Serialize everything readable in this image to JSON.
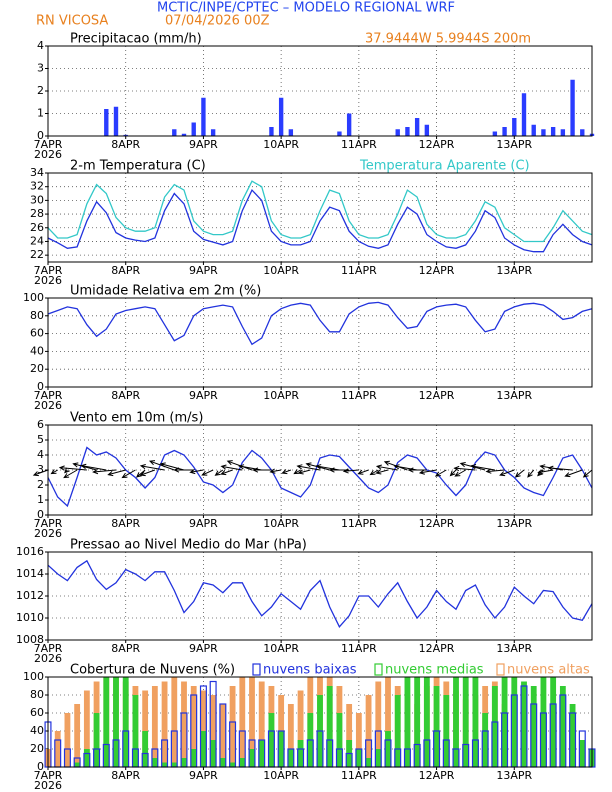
{
  "header": {
    "title": "MCTIC/INPE/CPTEC – MODELO REGIONAL WRF",
    "location": "RN VICOSA",
    "run": "07/04/2026 00Z",
    "coords": "37.9444W 5.9944S 200m"
  },
  "chart_data": [
    {
      "type": "bar",
      "title": "Precipitacao (mm/h)",
      "color": "#2a3cff",
      "grid": true,
      "x": [
        0,
        3,
        6,
        9,
        12,
        15,
        18,
        21,
        24,
        27,
        30,
        33,
        36,
        39,
        42,
        45,
        48,
        51,
        54,
        57,
        60,
        63,
        66,
        69,
        72,
        75,
        78,
        81,
        84,
        87,
        90,
        93,
        96,
        99,
        102,
        105,
        108,
        111,
        114,
        117,
        120,
        123,
        126,
        129,
        132,
        135,
        138,
        141,
        144,
        147,
        150,
        153,
        156,
        159,
        162,
        165,
        168
      ],
      "values": [
        0,
        0,
        0,
        0,
        0,
        0,
        1.2,
        1.3,
        0.05,
        0,
        0,
        0,
        0,
        0.3,
        0.1,
        0.6,
        1.7,
        0.3,
        0,
        0,
        0,
        0,
        0,
        0.4,
        1.7,
        0.3,
        0,
        0,
        0,
        0,
        0.2,
        1.0,
        0,
        0,
        0,
        0,
        0.3,
        0.4,
        0.8,
        0.5,
        0,
        0,
        0,
        0,
        0,
        0,
        0.2,
        0.4,
        0.8,
        1.9,
        0.5,
        0.3,
        0.4,
        0.3,
        2.5,
        0.3,
        0.1
      ],
      "xlim": [
        0,
        168
      ],
      "xticks": [
        {
          "value": 0,
          "label": "7APR"
        },
        {
          "value": 24,
          "label": "8APR"
        },
        {
          "value": 48,
          "label": "9APR"
        },
        {
          "value": 72,
          "label": "10APR"
        },
        {
          "value": 96,
          "label": "11APR"
        },
        {
          "value": 120,
          "label": "12APR"
        },
        {
          "value": 144,
          "label": "13APR"
        }
      ],
      "year_label": "2026",
      "ylim": [
        0,
        4
      ],
      "yticks": [
        0,
        1,
        2,
        3,
        4
      ]
    },
    {
      "type": "line",
      "title": "2-m Temperatura (C)",
      "grid": true,
      "x": [
        0,
        3,
        6,
        9,
        12,
        15,
        18,
        21,
        24,
        27,
        30,
        33,
        36,
        39,
        42,
        45,
        48,
        51,
        54,
        57,
        60,
        63,
        66,
        69,
        72,
        75,
        78,
        81,
        84,
        87,
        90,
        93,
        96,
        99,
        102,
        105,
        108,
        111,
        114,
        117,
        120,
        123,
        126,
        129,
        132,
        135,
        138,
        141,
        144,
        147,
        150,
        153,
        156,
        159,
        162,
        165,
        168
      ],
      "series": [
        {
          "color": "#2233dd",
          "values": [
            24.5,
            23.8,
            23.0,
            23.2,
            27.0,
            29.8,
            28.2,
            25.3,
            24.5,
            24.2,
            24.0,
            24.5,
            28.5,
            31.0,
            29.5,
            25.5,
            24.3,
            23.9,
            23.5,
            24.0,
            28.5,
            31.5,
            30.0,
            25.5,
            24.0,
            23.5,
            23.5,
            24.0,
            27.0,
            29.0,
            28.5,
            25.5,
            24.0,
            23.3,
            23.0,
            23.5,
            26.5,
            29.0,
            28.0,
            25.0,
            24.0,
            23.2,
            23.0,
            23.5,
            25.5,
            28.5,
            27.5,
            24.5,
            23.5,
            22.8,
            22.5,
            22.5,
            25.0,
            26.5,
            25.0,
            24.0,
            23.5
          ]
        },
        {
          "name": "Temperatura Aparente (C)",
          "color": "#33c8c8",
          "values": [
            26,
            24.5,
            24.5,
            25,
            29.5,
            32.3,
            31,
            27.5,
            26,
            25.5,
            25.5,
            26,
            30.5,
            32.3,
            31.5,
            27,
            25.5,
            25,
            25,
            25.5,
            30,
            32.8,
            32,
            27,
            25,
            24.5,
            24.5,
            25,
            28.5,
            31.5,
            31,
            27,
            25,
            24.5,
            24.5,
            25,
            28,
            31.5,
            30.5,
            26.5,
            25,
            24.5,
            24.5,
            25,
            27,
            29.8,
            29,
            26,
            25,
            24,
            24,
            24,
            26,
            28.5,
            27,
            25.5,
            25
          ]
        }
      ],
      "xlim": [
        0,
        168
      ],
      "xticks": [
        {
          "value": 0,
          "label": "7APR"
        },
        {
          "value": 24,
          "label": "8APR"
        },
        {
          "value": 48,
          "label": "9APR"
        },
        {
          "value": 72,
          "label": "10APR"
        },
        {
          "value": 96,
          "label": "11APR"
        },
        {
          "value": 120,
          "label": "12APR"
        },
        {
          "value": 144,
          "label": "13APR"
        }
      ],
      "year_label": "2026",
      "ylim": [
        21,
        34
      ],
      "yticks": [
        22,
        24,
        26,
        28,
        30,
        32,
        34
      ]
    },
    {
      "type": "line",
      "title": "Umidade Relativa em 2m (%)",
      "color": "#2233dd",
      "grid": true,
      "x": [
        0,
        3,
        6,
        9,
        12,
        15,
        18,
        21,
        24,
        27,
        30,
        33,
        36,
        39,
        42,
        45,
        48,
        51,
        54,
        57,
        60,
        63,
        66,
        69,
        72,
        75,
        78,
        81,
        84,
        87,
        90,
        93,
        96,
        99,
        102,
        105,
        108,
        111,
        114,
        117,
        120,
        123,
        126,
        129,
        132,
        135,
        138,
        141,
        144,
        147,
        150,
        153,
        156,
        159,
        162,
        165,
        168
      ],
      "values": [
        82,
        86,
        90,
        88,
        70,
        57,
        65,
        82,
        86,
        88,
        90,
        88,
        70,
        52,
        58,
        80,
        88,
        90,
        92,
        90,
        68,
        48,
        55,
        80,
        88,
        92,
        94,
        92,
        75,
        62,
        62,
        82,
        90,
        94,
        95,
        92,
        78,
        66,
        68,
        85,
        90,
        92,
        93,
        90,
        75,
        62,
        65,
        85,
        90,
        93,
        94,
        92,
        85,
        76,
        78,
        85,
        88
      ],
      "xlim": [
        0,
        168
      ],
      "xticks": [
        {
          "value": 0,
          "label": "7APR"
        },
        {
          "value": 24,
          "label": "8APR"
        },
        {
          "value": 48,
          "label": "9APR"
        },
        {
          "value": 72,
          "label": "10APR"
        },
        {
          "value": 96,
          "label": "11APR"
        },
        {
          "value": 120,
          "label": "12APR"
        },
        {
          "value": 144,
          "label": "13APR"
        }
      ],
      "year_label": "2026",
      "ylim": [
        0,
        100
      ],
      "yticks": [
        0,
        20,
        40,
        60,
        80,
        100
      ]
    },
    {
      "type": "wind",
      "title": "Vento em 10m (m/s)",
      "color": "#2233dd",
      "arrow_color": "#000000",
      "grid": true,
      "x": [
        0,
        3,
        6,
        9,
        12,
        15,
        18,
        21,
        24,
        27,
        30,
        33,
        36,
        39,
        42,
        45,
        48,
        51,
        54,
        57,
        60,
        63,
        66,
        69,
        72,
        75,
        78,
        81,
        84,
        87,
        90,
        93,
        96,
        99,
        102,
        105,
        108,
        111,
        114,
        117,
        120,
        123,
        126,
        129,
        132,
        135,
        138,
        141,
        144,
        147,
        150,
        153,
        156,
        159,
        162,
        165,
        168
      ],
      "values": [
        2.5,
        1.2,
        0.6,
        2.5,
        4.5,
        4.0,
        4.2,
        3.8,
        3.0,
        2.5,
        1.8,
        2.5,
        4.0,
        4.3,
        4.0,
        3.2,
        2.2,
        2.0,
        1.5,
        2.0,
        3.5,
        4.3,
        3.8,
        3.0,
        1.8,
        1.5,
        1.2,
        2.0,
        3.8,
        4.0,
        3.9,
        3.2,
        2.5,
        1.8,
        1.5,
        2.0,
        3.5,
        4.0,
        3.8,
        3.0,
        2.8,
        2.0,
        1.3,
        2.0,
        3.5,
        4.2,
        4.0,
        3.0,
        2.5,
        1.8,
        1.5,
        1.3,
        2.5,
        3.8,
        4.0,
        3.0,
        1.8
      ],
      "directions": [
        70,
        60,
        45,
        60,
        95,
        105,
        100,
        85,
        75,
        60,
        50,
        70,
        100,
        110,
        105,
        90,
        80,
        65,
        55,
        70,
        100,
        110,
        100,
        90,
        80,
        70,
        60,
        75,
        100,
        105,
        100,
        90,
        85,
        70,
        60,
        75,
        100,
        110,
        100,
        90,
        80,
        60,
        45,
        60,
        95,
        105,
        100,
        85,
        70,
        50,
        40,
        45,
        80,
        100,
        95,
        70,
        50
      ],
      "xlim": [
        0,
        168
      ],
      "xticks": [
        {
          "value": 0,
          "label": "7APR"
        },
        {
          "value": 24,
          "label": "8APR"
        },
        {
          "value": 48,
          "label": "9APR"
        },
        {
          "value": 72,
          "label": "10APR"
        },
        {
          "value": 96,
          "label": "11APR"
        },
        {
          "value": 120,
          "label": "12APR"
        },
        {
          "value": 144,
          "label": "13APR"
        }
      ],
      "year_label": "2026",
      "ylim": [
        0,
        6
      ],
      "yticks": [
        0,
        1,
        2,
        3,
        4,
        5,
        6
      ]
    },
    {
      "type": "line",
      "title": "Pressao ao Nivel Medio do Mar (hPa)",
      "color": "#2233dd",
      "grid": true,
      "x": [
        0,
        3,
        6,
        9,
        12,
        15,
        18,
        21,
        24,
        27,
        30,
        33,
        36,
        39,
        42,
        45,
        48,
        51,
        54,
        57,
        60,
        63,
        66,
        69,
        72,
        75,
        78,
        81,
        84,
        87,
        90,
        93,
        96,
        99,
        102,
        105,
        108,
        111,
        114,
        117,
        120,
        123,
        126,
        129,
        132,
        135,
        138,
        141,
        144,
        147,
        150,
        153,
        156,
        159,
        162,
        165,
        168
      ],
      "values": [
        1014.8,
        1014.0,
        1013.4,
        1014.6,
        1015.2,
        1013.5,
        1012.6,
        1013.2,
        1014.4,
        1014.0,
        1013.4,
        1014.2,
        1014.2,
        1012.5,
        1010.5,
        1011.5,
        1013.2,
        1013.0,
        1012.3,
        1013.2,
        1013.2,
        1011.5,
        1010.2,
        1011.0,
        1012.2,
        1011.5,
        1010.8,
        1012.5,
        1013.4,
        1011.0,
        1009.2,
        1010.2,
        1012.0,
        1012.0,
        1011.0,
        1012.2,
        1013.2,
        1011.5,
        1010.0,
        1011.0,
        1012.5,
        1011.5,
        1010.8,
        1012.5,
        1013.0,
        1011.2,
        1010.0,
        1011.0,
        1012.8,
        1012.0,
        1011.3,
        1012.5,
        1012.4,
        1011.0,
        1010.0,
        1009.8,
        1011.3
      ],
      "xlim": [
        0,
        168
      ],
      "xticks": [
        {
          "value": 0,
          "label": "7APR"
        },
        {
          "value": 24,
          "label": "8APR"
        },
        {
          "value": 48,
          "label": "9APR"
        },
        {
          "value": 72,
          "label": "10APR"
        },
        {
          "value": 96,
          "label": "11APR"
        },
        {
          "value": 120,
          "label": "12APR"
        },
        {
          "value": 144,
          "label": "13APR"
        }
      ],
      "year_label": "2026",
      "ylim": [
        1008,
        1016
      ],
      "yticks": [
        1008,
        1010,
        1012,
        1014,
        1016
      ]
    },
    {
      "type": "bar",
      "title": "Cobertura de Nuvens (%)",
      "grid": true,
      "x": [
        0,
        3,
        6,
        9,
        12,
        15,
        18,
        21,
        24,
        27,
        30,
        33,
        36,
        39,
        42,
        45,
        48,
        51,
        54,
        57,
        60,
        63,
        66,
        69,
        72,
        75,
        78,
        81,
        84,
        87,
        90,
        93,
        96,
        99,
        102,
        105,
        108,
        111,
        114,
        117,
        120,
        123,
        126,
        129,
        132,
        135,
        138,
        141,
        144,
        147,
        150,
        153,
        156,
        159,
        162,
        165,
        168
      ],
      "series": [
        {
          "name": "nuvens baixas",
          "color": "#2233dd",
          "outline": true,
          "values": [
            50,
            30,
            20,
            10,
            15,
            20,
            25,
            30,
            40,
            20,
            15,
            20,
            30,
            40,
            60,
            80,
            90,
            95,
            70,
            50,
            40,
            30,
            30,
            40,
            40,
            20,
            20,
            30,
            40,
            30,
            20,
            15,
            20,
            30,
            40,
            30,
            20,
            20,
            25,
            30,
            40,
            30,
            20,
            25,
            30,
            40,
            50,
            60,
            80,
            90,
            70,
            60,
            70,
            80,
            60,
            40,
            20
          ]
        },
        {
          "name": "nuvens medias",
          "color": "#33cc33",
          "outline": false,
          "values": [
            0,
            0,
            0,
            5,
            20,
            60,
            100,
            100,
            100,
            80,
            40,
            10,
            5,
            5,
            10,
            20,
            40,
            30,
            10,
            5,
            10,
            20,
            30,
            60,
            40,
            20,
            30,
            60,
            80,
            90,
            60,
            30,
            20,
            10,
            20,
            40,
            80,
            100,
            100,
            100,
            90,
            80,
            100,
            100,
            100,
            60,
            90,
            100,
            100,
            95,
            90,
            100,
            100,
            90,
            70,
            30,
            20
          ]
        },
        {
          "name": "nuvens altas",
          "color": "#f0a060",
          "outline": false,
          "values": [
            20,
            40,
            60,
            70,
            85,
            95,
            100,
            100,
            95,
            90,
            85,
            90,
            95,
            100,
            95,
            90,
            85,
            80,
            70,
            90,
            100,
            100,
            95,
            90,
            80,
            70,
            85,
            100,
            100,
            100,
            90,
            70,
            60,
            80,
            95,
            100,
            90,
            80,
            70,
            90,
            100,
            95,
            85,
            75,
            80,
            90,
            95,
            70,
            50,
            40,
            30,
            30,
            40,
            20,
            10,
            10,
            5
          ]
        }
      ],
      "xlim": [
        0,
        168
      ],
      "xticks": [
        {
          "value": 0,
          "label": "7APR"
        },
        {
          "value": 24,
          "label": "8APR"
        },
        {
          "value": 48,
          "label": "9APR"
        },
        {
          "value": 72,
          "label": "10APR"
        },
        {
          "value": 96,
          "label": "11APR"
        },
        {
          "value": 120,
          "label": "12APR"
        },
        {
          "value": 144,
          "label": "13APR"
        }
      ],
      "year_label": "2026",
      "ylim": [
        0,
        100
      ],
      "yticks": [
        0,
        20,
        40,
        60,
        80,
        100
      ]
    }
  ]
}
